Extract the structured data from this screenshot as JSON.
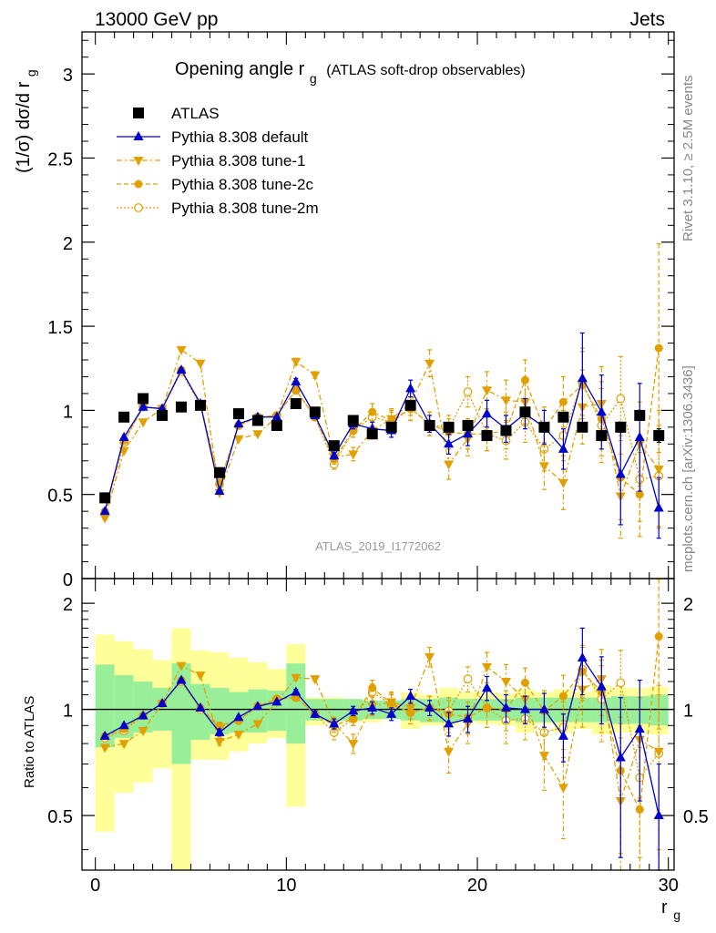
{
  "header": {
    "left": "13000 GeV pp",
    "right": "Jets"
  },
  "side_labels": {
    "rivet": "Rivet 3.1.10, ≥ 2.5M events",
    "mcplots": "mcplots.cern.ch [arXiv:1306.3436]"
  },
  "chart_data": [
    {
      "type": "scatter",
      "title": "Opening angle r",
      "title_subscript": "g",
      "title_suffix": "(ATLAS soft-drop observables)",
      "ylabel": "(1/σ) dσ/d r",
      "ylabel_subscript": "g",
      "watermark": "ATLAS_2019_I1772062",
      "xlim": [
        -0.7,
        30.3
      ],
      "ylim": [
        0,
        3.25
      ],
      "yticks": [
        0,
        0.5,
        1,
        1.5,
        2,
        2.5,
        3
      ],
      "ytick_labels": [
        "0",
        "0.5",
        "1",
        "1.5",
        "2",
        "2.5",
        "3"
      ],
      "legend_position": "top-left",
      "colors": {
        "data": "#000000",
        "default": "#0000cc",
        "tunes": "#e0a000",
        "band_inner": "#99ee99",
        "band_outer": "#ffff99"
      },
      "x": [
        0.5,
        1.5,
        2.5,
        3.5,
        4.5,
        5.5,
        6.5,
        7.5,
        8.5,
        9.5,
        10.5,
        11.5,
        12.5,
        13.5,
        14.5,
        15.5,
        16.5,
        17.5,
        18.5,
        19.5,
        20.5,
        21.5,
        22.5,
        23.5,
        24.5,
        25.5,
        26.5,
        27.5,
        28.5,
        29.5
      ],
      "series": [
        {
          "name": "ATLAS",
          "style": "data",
          "values": [
            0.48,
            0.96,
            1.07,
            0.97,
            1.02,
            1.03,
            0.63,
            0.98,
            0.94,
            0.91,
            1.04,
            0.99,
            0.79,
            0.94,
            0.86,
            0.9,
            1.03,
            0.91,
            0.9,
            0.91,
            0.85,
            0.88,
            0.99,
            0.9,
            0.96,
            0.9,
            0.85,
            0.9,
            0.97,
            0.85
          ],
          "errors": [
            0.01,
            0.01,
            0.01,
            0.01,
            0.01,
            0.01,
            0.01,
            0.01,
            0.01,
            0.01,
            0.01,
            0.01,
            0.01,
            0.01,
            0.01,
            0.01,
            0.01,
            0.01,
            0.01,
            0.01,
            0.01,
            0.02,
            0.02,
            0.02,
            0.02,
            0.02,
            0.02,
            0.03,
            0.03,
            0.04
          ]
        },
        {
          "name": "Pythia 8.308 default",
          "style": "default",
          "values": [
            0.4,
            0.84,
            1.02,
            1.01,
            1.24,
            1.04,
            0.52,
            0.92,
            0.96,
            0.96,
            1.17,
            0.97,
            0.73,
            0.92,
            0.89,
            0.88,
            1.13,
            0.92,
            0.8,
            0.86,
            0.98,
            0.89,
            0.98,
            0.9,
            0.77,
            1.19,
            0.99,
            0.62,
            0.84,
            0.42
          ],
          "errors": [
            0.01,
            0.01,
            0.01,
            0.01,
            0.01,
            0.01,
            0.01,
            0.01,
            0.01,
            0.01,
            0.02,
            0.02,
            0.02,
            0.03,
            0.04,
            0.04,
            0.05,
            0.05,
            0.06,
            0.07,
            0.08,
            0.08,
            0.09,
            0.1,
            0.12,
            0.27,
            0.22,
            0.3,
            0.32,
            0.18
          ]
        },
        {
          "name": "Pythia 8.308 tune-1",
          "style": "tune1",
          "values": [
            0.36,
            0.76,
            0.93,
            1.01,
            1.36,
            1.28,
            0.51,
            0.83,
            0.86,
            0.96,
            1.29,
            1.21,
            0.72,
            0.74,
            0.88,
            0.95,
            1.04,
            1.28,
            0.68,
            0.83,
            1.12,
            1.06,
            1.05,
            0.67,
            0.57,
            1.02,
            1.04,
            0.49,
            0.8,
            0.65
          ],
          "errors": [
            0.01,
            0.01,
            0.01,
            0.01,
            0.01,
            0.01,
            0.01,
            0.01,
            0.01,
            0.01,
            0.02,
            0.02,
            0.03,
            0.04,
            0.05,
            0.06,
            0.07,
            0.08,
            0.09,
            0.1,
            0.11,
            0.12,
            0.13,
            0.14,
            0.16,
            0.22,
            0.22,
            0.25,
            0.25,
            0.35
          ]
        },
        {
          "name": "Pythia 8.308 tune-2c",
          "style": "tune2c",
          "values": [
            0.4,
            0.82,
            1.02,
            1.01,
            1.24,
            1.04,
            0.57,
            0.91,
            0.96,
            0.97,
            1.12,
            0.96,
            0.71,
            0.88,
            0.99,
            0.94,
            1.01,
            0.92,
            0.87,
            0.86,
            0.86,
            0.88,
            1.18,
            0.89,
            1.05,
            1.15,
            0.95,
            0.6,
            0.5,
            1.37
          ],
          "errors": [
            0.01,
            0.01,
            0.01,
            0.01,
            0.01,
            0.01,
            0.01,
            0.01,
            0.01,
            0.01,
            0.02,
            0.02,
            0.03,
            0.04,
            0.05,
            0.06,
            0.07,
            0.07,
            0.08,
            0.09,
            0.1,
            0.11,
            0.12,
            0.13,
            0.15,
            0.2,
            0.22,
            0.25,
            0.25,
            0.62
          ]
        },
        {
          "name": "Pythia 8.308 tune-2m",
          "style": "tune2m",
          "values": [
            0.39,
            0.81,
            1.02,
            1.01,
            1.23,
            1.03,
            0.56,
            0.91,
            0.96,
            0.97,
            1.12,
            0.96,
            0.68,
            0.88,
            0.96,
            0.93,
            1.01,
            0.92,
            0.89,
            1.11,
            0.86,
            0.82,
            0.93,
            0.77,
            0.85,
            1.17,
            0.91,
            1.07,
            0.59,
            0.61
          ],
          "errors": [
            0.01,
            0.01,
            0.01,
            0.01,
            0.01,
            0.01,
            0.01,
            0.01,
            0.01,
            0.01,
            0.02,
            0.02,
            0.03,
            0.04,
            0.05,
            0.06,
            0.07,
            0.07,
            0.08,
            0.09,
            0.1,
            0.11,
            0.12,
            0.13,
            0.15,
            0.2,
            0.22,
            0.25,
            0.25,
            0.3
          ]
        }
      ]
    },
    {
      "type": "scatter",
      "ylabel": "Ratio to ATLAS",
      "xlabel": "r",
      "xlabel_subscript": "g",
      "xlim": [
        -0.7,
        30.3
      ],
      "ylim": [
        0.35,
        2.35
      ],
      "xticks": [
        0,
        10,
        20,
        30
      ],
      "xtick_labels": [
        "0",
        "10",
        "20",
        "30"
      ],
      "yticks": [
        0.5,
        1,
        2
      ],
      "ytick_labels": [
        "0.5",
        "1",
        "2"
      ],
      "reference_line": 1,
      "band_inner": [
        [
          0.78,
          1.34
        ],
        [
          0.83,
          1.25
        ],
        [
          0.86,
          1.2
        ],
        [
          0.87,
          1.15
        ],
        [
          0.7,
          1.35
        ],
        [
          0.82,
          1.18
        ],
        [
          0.85,
          1.15
        ],
        [
          0.86,
          1.12
        ],
        [
          0.86,
          1.14
        ],
        [
          0.87,
          1.13
        ],
        [
          0.8,
          1.35
        ],
        [
          0.93,
          1.07
        ],
        [
          0.93,
          1.07
        ],
        [
          0.93,
          1.07
        ],
        [
          0.94,
          1.06
        ],
        [
          0.94,
          1.06
        ],
        [
          0.93,
          1.07
        ],
        [
          0.92,
          1.07
        ],
        [
          0.92,
          1.08
        ],
        [
          0.93,
          1.07
        ],
        [
          0.93,
          1.07
        ],
        [
          0.93,
          1.07
        ],
        [
          0.92,
          1.08
        ],
        [
          0.92,
          1.08
        ],
        [
          0.92,
          1.08
        ],
        [
          0.92,
          1.08
        ],
        [
          0.92,
          1.08
        ],
        [
          0.91,
          1.09
        ],
        [
          0.91,
          1.09
        ],
        [
          0.9,
          1.1
        ]
      ],
      "band_outer": [
        [
          0.45,
          1.63
        ],
        [
          0.58,
          1.56
        ],
        [
          0.62,
          1.48
        ],
        [
          0.68,
          1.38
        ],
        [
          0.3,
          1.7
        ],
        [
          0.72,
          1.47
        ],
        [
          0.72,
          1.45
        ],
        [
          0.76,
          1.4
        ],
        [
          0.8,
          1.36
        ],
        [
          0.83,
          1.3
        ],
        [
          0.53,
          1.53
        ],
        [
          0.9,
          1.08
        ],
        [
          0.92,
          1.08
        ],
        [
          0.92,
          1.06
        ],
        [
          0.92,
          1.05
        ],
        [
          0.94,
          1.04
        ],
        [
          0.88,
          1.12
        ],
        [
          0.9,
          1.1
        ],
        [
          0.9,
          1.15
        ],
        [
          0.92,
          1.12
        ],
        [
          0.91,
          1.12
        ],
        [
          0.9,
          1.11
        ],
        [
          0.86,
          1.14
        ],
        [
          0.91,
          1.12
        ],
        [
          0.86,
          1.14
        ],
        [
          0.88,
          1.12
        ],
        [
          0.85,
          1.17
        ],
        [
          0.86,
          1.15
        ],
        [
          0.86,
          1.15
        ],
        [
          0.85,
          1.16
        ]
      ],
      "series": [
        {
          "name": "Pythia 8.308 default",
          "style": "default",
          "values": [
            0.84,
            0.9,
            0.96,
            1.04,
            1.21,
            1.01,
            0.86,
            0.95,
            1.02,
            1.05,
            1.12,
            0.97,
            0.91,
            0.99,
            1.01,
            0.97,
            1.09,
            1.01,
            0.91,
            0.94,
            1.15,
            1.01,
            1.0,
            1.0,
            0.84,
            1.4,
            1.16,
            0.73,
            0.88,
            0.5
          ],
          "errors": [
            0.01,
            0.01,
            0.01,
            0.01,
            0.01,
            0.01,
            0.02,
            0.01,
            0.01,
            0.01,
            0.02,
            0.02,
            0.03,
            0.03,
            0.04,
            0.04,
            0.05,
            0.05,
            0.07,
            0.08,
            0.09,
            0.09,
            0.09,
            0.11,
            0.13,
            0.3,
            0.25,
            0.35,
            0.33,
            0.2
          ]
        },
        {
          "name": "Pythia 8.308 tune-1",
          "style": "tune1",
          "values": [
            0.78,
            0.8,
            0.87,
            1.04,
            1.33,
            1.25,
            0.81,
            0.85,
            0.91,
            1.05,
            1.23,
            1.22,
            0.91,
            0.8,
            1.02,
            1.05,
            1.01,
            1.41,
            0.76,
            0.91,
            1.32,
            1.2,
            1.07,
            0.74,
            0.6,
            1.14,
            1.22,
            0.55,
            0.82,
            0.76
          ],
          "errors": [
            0.01,
            0.01,
            0.01,
            0.01,
            0.01,
            0.01,
            0.02,
            0.01,
            0.01,
            0.01,
            0.02,
            0.02,
            0.04,
            0.05,
            0.06,
            0.07,
            0.07,
            0.09,
            0.1,
            0.11,
            0.13,
            0.14,
            0.14,
            0.15,
            0.17,
            0.25,
            0.26,
            0.28,
            0.26,
            0.41
          ]
        },
        {
          "name": "Pythia 8.308 tune-2c",
          "style": "tune2c",
          "values": [
            0.84,
            0.88,
            0.96,
            1.04,
            1.21,
            1.01,
            0.9,
            0.93,
            1.02,
            1.07,
            1.08,
            0.97,
            0.9,
            0.94,
            1.15,
            1.04,
            0.98,
            1.01,
            0.97,
            0.95,
            1.01,
            1.0,
            1.19,
            0.99,
            1.09,
            1.28,
            1.12,
            0.67,
            0.52,
            1.61
          ],
          "errors": [
            0.01,
            0.01,
            0.01,
            0.01,
            0.01,
            0.01,
            0.02,
            0.01,
            0.01,
            0.01,
            0.02,
            0.02,
            0.04,
            0.04,
            0.06,
            0.07,
            0.07,
            0.08,
            0.09,
            0.1,
            0.12,
            0.13,
            0.12,
            0.14,
            0.16,
            0.22,
            0.26,
            0.28,
            0.26,
            0.73
          ]
        },
        {
          "name": "Pythia 8.308 tune-2m",
          "style": "tune2m",
          "values": [
            0.83,
            0.87,
            0.96,
            1.04,
            1.2,
            1.0,
            0.89,
            0.93,
            1.02,
            1.07,
            1.08,
            0.97,
            0.86,
            0.94,
            1.12,
            1.03,
            0.98,
            1.01,
            0.99,
            1.22,
            1.01,
            0.93,
            0.94,
            0.86,
            0.89,
            1.3,
            1.07,
            1.19,
            0.64,
            0.75
          ],
          "errors": [
            0.01,
            0.01,
            0.01,
            0.01,
            0.01,
            0.01,
            0.02,
            0.01,
            0.01,
            0.01,
            0.02,
            0.02,
            0.04,
            0.04,
            0.06,
            0.07,
            0.07,
            0.08,
            0.09,
            0.1,
            0.12,
            0.13,
            0.12,
            0.14,
            0.16,
            0.22,
            0.26,
            0.28,
            0.26,
            0.35
          ]
        }
      ]
    }
  ]
}
